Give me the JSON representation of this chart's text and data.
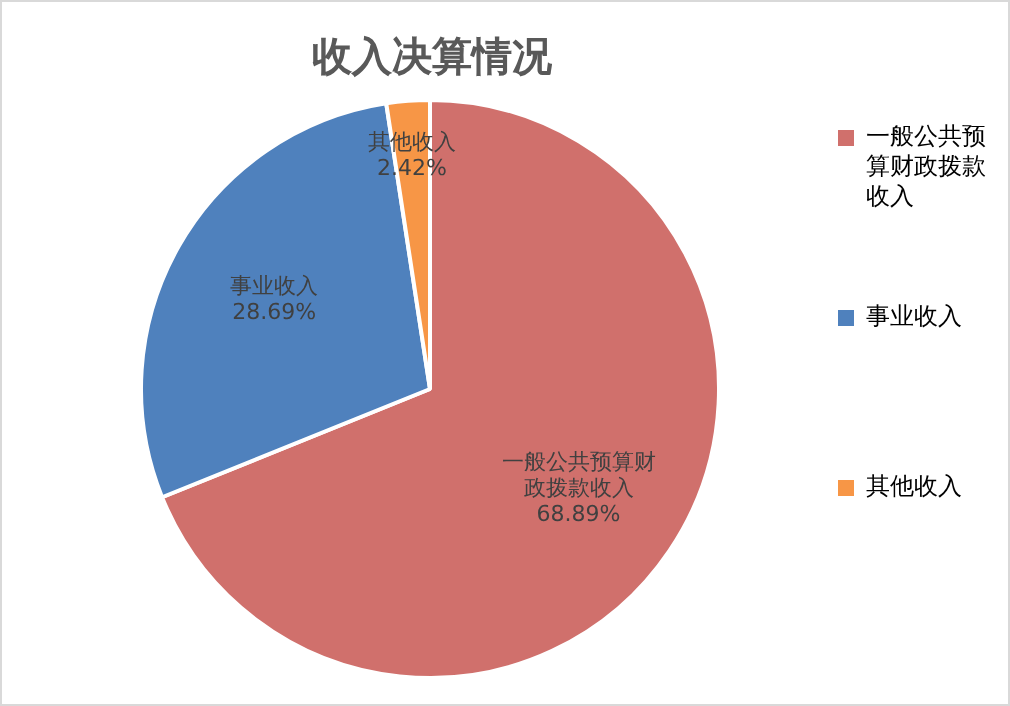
{
  "chart_data": {
    "type": "pie",
    "title": "收入决算情况",
    "categories": [
      "一般公共预算财政拨款收入",
      "事业收入",
      "其他收入"
    ],
    "values": [
      68.89,
      28.69,
      2.42
    ],
    "colors": [
      "#d0706c",
      "#4f81bd",
      "#f79646"
    ],
    "value_labels": [
      "68.89%",
      "28.69%",
      "2.42%"
    ],
    "legend": "right"
  }
}
